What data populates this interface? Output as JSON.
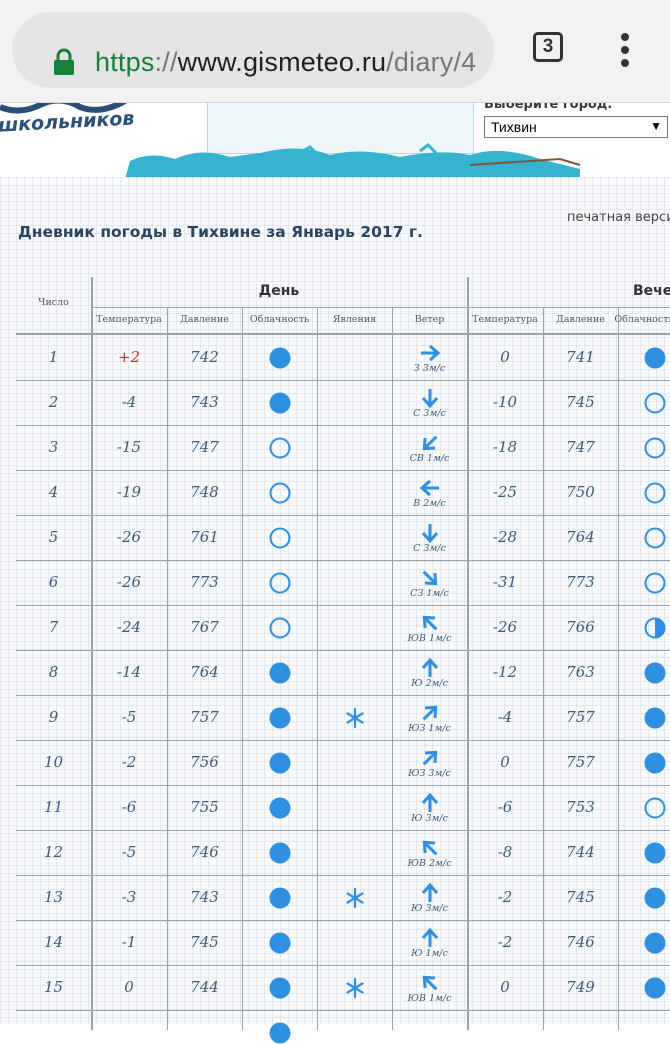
{
  "browser": {
    "url_scheme": "https",
    "url_separator": "://",
    "url_host": "www.gismeteo.ru",
    "url_path": "/diary/4",
    "tab_count": "3"
  },
  "header": {
    "logo_text": "школьников",
    "city_label": "Выберите город:",
    "city_selected": "Тихвин"
  },
  "page": {
    "title": "Дневник погоды в Тихвине за Январь 2017 г.",
    "print_link": "печатная верси"
  },
  "table": {
    "col_day_number": "Число",
    "group_day": "День",
    "group_evening": "Вечер",
    "sub_headers": [
      "Температура",
      "Давление",
      "Облачность",
      "Явления",
      "Ветер",
      "Температура",
      "Давление",
      "Облачность"
    ],
    "rows": [
      {
        "day": "1",
        "d_temp": "+2",
        "d_press": "742",
        "d_cloud": "full",
        "d_snow": false,
        "wind_dir": "E",
        "wind": "З 3м/с",
        "e_temp": "0",
        "e_press": "741",
        "e_cloud": "full"
      },
      {
        "day": "2",
        "d_temp": "-4",
        "d_press": "743",
        "d_cloud": "full",
        "d_snow": false,
        "wind_dir": "S",
        "wind": "С 3м/с",
        "e_temp": "-10",
        "e_press": "745",
        "e_cloud": "clear"
      },
      {
        "day": "3",
        "d_temp": "-15",
        "d_press": "747",
        "d_cloud": "clear",
        "d_snow": false,
        "wind_dir": "SW",
        "wind": "СВ 1м/с",
        "e_temp": "-18",
        "e_press": "747",
        "e_cloud": "clear"
      },
      {
        "day": "4",
        "d_temp": "-19",
        "d_press": "748",
        "d_cloud": "clear",
        "d_snow": false,
        "wind_dir": "W",
        "wind": "В 2м/с",
        "e_temp": "-25",
        "e_press": "750",
        "e_cloud": "clear"
      },
      {
        "day": "5",
        "d_temp": "-26",
        "d_press": "761",
        "d_cloud": "clear",
        "d_snow": false,
        "wind_dir": "S",
        "wind": "С 3м/с",
        "e_temp": "-28",
        "e_press": "764",
        "e_cloud": "clear"
      },
      {
        "day": "6",
        "d_temp": "-26",
        "d_press": "773",
        "d_cloud": "clear",
        "d_snow": false,
        "wind_dir": "SE",
        "wind": "СЗ 1м/с",
        "e_temp": "-31",
        "e_press": "773",
        "e_cloud": "clear"
      },
      {
        "day": "7",
        "d_temp": "-24",
        "d_press": "767",
        "d_cloud": "clear",
        "d_snow": false,
        "wind_dir": "NW",
        "wind": "ЮВ 1м/с",
        "e_temp": "-26",
        "e_press": "766",
        "e_cloud": "half"
      },
      {
        "day": "8",
        "d_temp": "-14",
        "d_press": "764",
        "d_cloud": "full",
        "d_snow": false,
        "wind_dir": "N",
        "wind": "Ю 2м/с",
        "e_temp": "-12",
        "e_press": "763",
        "e_cloud": "full"
      },
      {
        "day": "9",
        "d_temp": "-5",
        "d_press": "757",
        "d_cloud": "full",
        "d_snow": true,
        "wind_dir": "NE",
        "wind": "ЮЗ 1м/с",
        "e_temp": "-4",
        "e_press": "757",
        "e_cloud": "full"
      },
      {
        "day": "10",
        "d_temp": "-2",
        "d_press": "756",
        "d_cloud": "full",
        "d_snow": false,
        "wind_dir": "NE",
        "wind": "ЮЗ 3м/с",
        "e_temp": "0",
        "e_press": "757",
        "e_cloud": "full"
      },
      {
        "day": "11",
        "d_temp": "-6",
        "d_press": "755",
        "d_cloud": "full",
        "d_snow": false,
        "wind_dir": "N",
        "wind": "Ю 3м/с",
        "e_temp": "-6",
        "e_press": "753",
        "e_cloud": "clear"
      },
      {
        "day": "12",
        "d_temp": "-5",
        "d_press": "746",
        "d_cloud": "full",
        "d_snow": false,
        "wind_dir": "NW",
        "wind": "ЮВ 2м/с",
        "e_temp": "-8",
        "e_press": "744",
        "e_cloud": "full"
      },
      {
        "day": "13",
        "d_temp": "-3",
        "d_press": "743",
        "d_cloud": "full",
        "d_snow": true,
        "wind_dir": "N",
        "wind": "Ю 3м/с",
        "e_temp": "-2",
        "e_press": "745",
        "e_cloud": "full"
      },
      {
        "day": "14",
        "d_temp": "-1",
        "d_press": "745",
        "d_cloud": "full",
        "d_snow": false,
        "wind_dir": "N",
        "wind": "Ю 1м/с",
        "e_temp": "-2",
        "e_press": "746",
        "e_cloud": "full"
      },
      {
        "day": "15",
        "d_temp": "0",
        "d_press": "744",
        "d_cloud": "full",
        "d_snow": true,
        "wind_dir": "NW",
        "wind": "ЮВ 1м/с",
        "e_temp": "0",
        "e_press": "749",
        "e_cloud": "full"
      }
    ]
  },
  "colors": {
    "accent": "#2f8fe0",
    "warm_temp": "#d6232a",
    "cell_text": "#3f5a76",
    "url_green": "#188038"
  }
}
